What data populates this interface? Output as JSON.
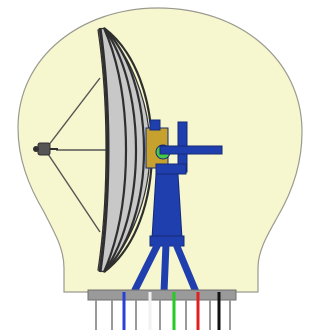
{
  "diagram": {
    "subject": "radar-antenna-in-radome",
    "components": [
      "radome",
      "parabolic-reflector",
      "feed-horn",
      "feed-support-struts",
      "elevation-drive",
      "azimuth-pedestal",
      "tripod-stand",
      "base-platform",
      "signal-cables"
    ]
  },
  "colors": {
    "radome_fill": "#f7f7cf",
    "radome_outline": "#9a9a90",
    "dish_fill": "#c8c8c8",
    "dish_rib": "#2f2f2f",
    "feed_support": "#555555",
    "pedestal_blue": "#1f3fae",
    "pedestal_dark": "#142a77",
    "mount_gold": "#c6a12e",
    "mount_green": "#46c746",
    "base_gray": "#9a9a9a",
    "cable_blue": "#2840d8",
    "cable_white": "#f2f2f2",
    "cable_green": "#22cc22",
    "cable_red": "#e02020",
    "cable_black": "#111111"
  }
}
